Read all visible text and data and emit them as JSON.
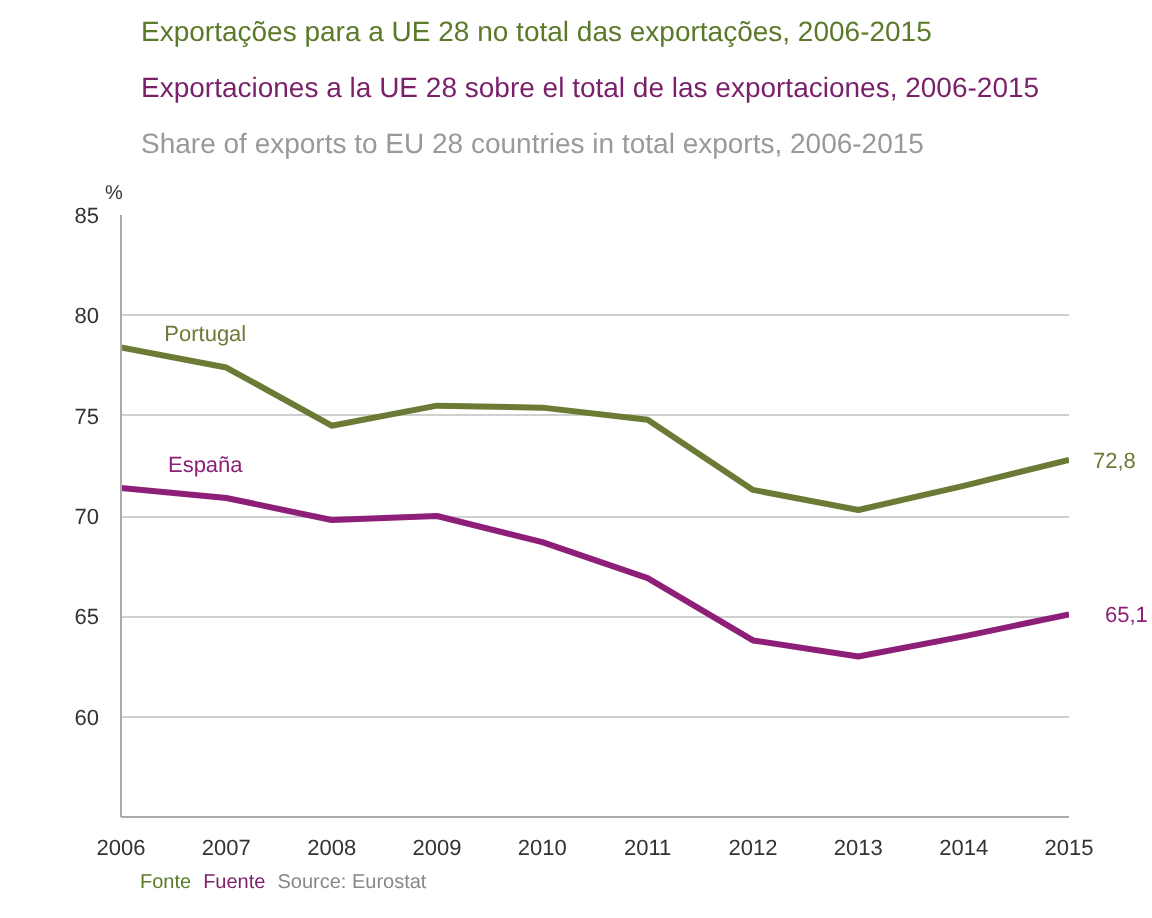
{
  "chart_data": {
    "type": "line",
    "title": "Exportações para a UE 28 no total das exportações, 2006-2015",
    "subtitle": "Exportaciones a la UE 28 sobre el total de las exportaciones, 2006-2015",
    "annotations": [
      "Share of exports to EU 28 countries in total exports, 2006-2015",
      "Fonte",
      "Fuente",
      "Source: Eurostat"
    ],
    "ylabel": "%",
    "x": [
      2006,
      2007,
      2008,
      2009,
      2010,
      2011,
      2012,
      2013,
      2014,
      2015
    ],
    "xlim": [
      2006,
      2015
    ],
    "xticks": [
      2006,
      2007,
      2008,
      2009,
      2010,
      2011,
      2012,
      2013,
      2014,
      2015
    ],
    "ylim": [
      55,
      85
    ],
    "yticks": [
      60,
      65,
      70,
      75,
      80,
      85
    ],
    "grid": "y",
    "series": [
      {
        "name": "Portugal",
        "color": "#6b7a34",
        "values": [
          78.4,
          77.4,
          74.5,
          75.5,
          75.4,
          74.8,
          71.3,
          70.3,
          71.5,
          72.8
        ],
        "value_labels": [
          null,
          null,
          null,
          null,
          null,
          null,
          null,
          null,
          null,
          "72,8"
        ]
      },
      {
        "name": "España",
        "color": "#8e1f78",
        "values": [
          71.4,
          70.9,
          69.8,
          70.0,
          68.7,
          66.9,
          63.8,
          63.0,
          64.0,
          65.1
        ],
        "value_labels": [
          null,
          null,
          null,
          null,
          null,
          null,
          null,
          null,
          null,
          "65,1"
        ]
      }
    ]
  }
}
